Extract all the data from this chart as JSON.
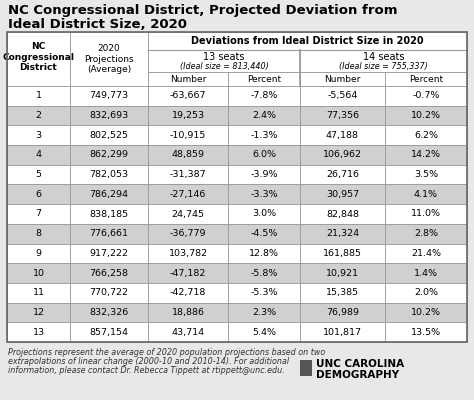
{
  "title_line1": "NC Congressional District, Projected Deviation from",
  "title_line2": "Ideal District Size, 2020",
  "districts": [
    "1",
    "2",
    "3",
    "4",
    "5",
    "6",
    "7",
    "8",
    "9",
    "10",
    "11",
    "12",
    "13"
  ],
  "projections": [
    "749,773",
    "832,693",
    "802,525",
    "862,299",
    "782,053",
    "786,294",
    "838,185",
    "776,661",
    "917,222",
    "766,258",
    "770,722",
    "832,326",
    "857,154"
  ],
  "seats13_number": [
    "-63,667",
    "19,253",
    "-10,915",
    "48,859",
    "-31,387",
    "-27,146",
    "24,745",
    "-36,779",
    "103,782",
    "-47,182",
    "-42,718",
    "18,886",
    "43,714"
  ],
  "seats13_percent": [
    "-7.8%",
    "2.4%",
    "-1.3%",
    "6.0%",
    "-3.9%",
    "-3.3%",
    "3.0%",
    "-4.5%",
    "12.8%",
    "-5.8%",
    "-5.3%",
    "2.3%",
    "5.4%"
  ],
  "seats14_number": [
    "-5,564",
    "77,356",
    "47,188",
    "106,962",
    "26,716",
    "30,957",
    "82,848",
    "21,324",
    "161,885",
    "10,921",
    "15,385",
    "76,989",
    "101,817"
  ],
  "seats14_percent": [
    "-0.7%",
    "10.2%",
    "6.2%",
    "14.2%",
    "3.5%",
    "4.1%",
    "11.0%",
    "2.8%",
    "21.4%",
    "1.4%",
    "2.0%",
    "10.2%",
    "13.5%"
  ],
  "footer_line1": "Projections represent the average of 2020 population projections based on two",
  "footer_line2": "extrapolations of linear change (2000-10 and 2010-14). For additional",
  "footer_line3": "information, please contact Dr. Rebecca Tippett at rtippett@unc.edu.",
  "unc_line1": "UNC CAROLINA",
  "unc_line2": "DEMOGRAPHY",
  "bg_color": "#e8e8e8",
  "table_bg": "#ffffff",
  "alt_row_color": "#d0d0d0",
  "header_bg": "#ffffff",
  "border_color": "#999999"
}
